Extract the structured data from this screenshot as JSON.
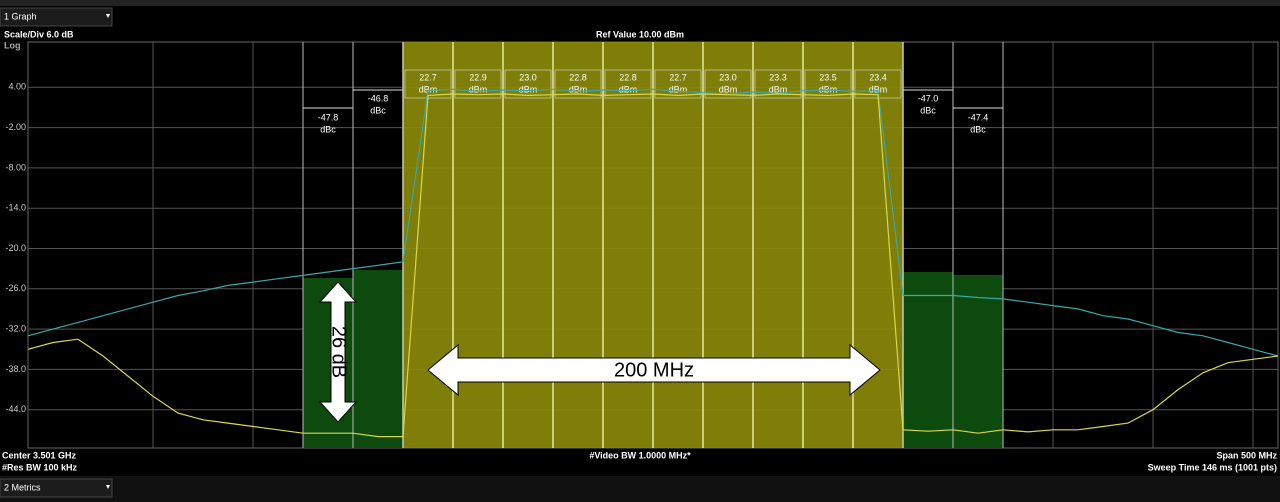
{
  "screen": {
    "top_menu": {
      "label": "1 Graph"
    },
    "header": {
      "scale": "Scale/Div 6.0 dB",
      "mode": "Log",
      "ref": "Ref Value 10.00 dBm"
    },
    "graph": {
      "ylim": [
        -50,
        10
      ],
      "yticks": [
        {
          "value": 4,
          "label": "4.00"
        },
        {
          "value": -2,
          "label": "-2.00"
        },
        {
          "value": -8,
          "label": "-8.00"
        },
        {
          "value": -14,
          "label": "-14.0"
        },
        {
          "value": -20,
          "label": "-20.0"
        },
        {
          "value": -26,
          "label": "-26.0"
        },
        {
          "value": -32,
          "label": "-32.0"
        },
        {
          "value": -38,
          "label": "-38.0"
        },
        {
          "value": -44,
          "label": "-44.0"
        }
      ],
      "channels": [
        {
          "power": "22.7",
          "unit": "dBm"
        },
        {
          "power": "22.9",
          "unit": "dBm"
        },
        {
          "power": "23.0",
          "unit": "dBm"
        },
        {
          "power": "22.8",
          "unit": "dBm"
        },
        {
          "power": "22.8",
          "unit": "dBm"
        },
        {
          "power": "22.7",
          "unit": "dBm"
        },
        {
          "power": "23.0",
          "unit": "dBm"
        },
        {
          "power": "23.3",
          "unit": "dBm"
        },
        {
          "power": "23.5",
          "unit": "dBm"
        },
        {
          "power": "23.4",
          "unit": "dBm"
        }
      ],
      "adjacent": [
        {
          "value": "-47.8",
          "unit": "dBc"
        },
        {
          "value": "-46.8",
          "unit": "dBc"
        },
        {
          "value": "-47.0",
          "unit": "dBc"
        },
        {
          "value": "-47.4",
          "unit": "dBc"
        }
      ],
      "traces": [
        {
          "color": "#d8d84a",
          "values": [
            -35,
            -34,
            -33.5,
            -36,
            -39,
            -42,
            -44.5,
            -45.5,
            -46,
            -46.5,
            -47,
            -47.5,
            -47.5,
            -47.5,
            -48,
            -48,
            2.8,
            3,
            2.9,
            3,
            2.8,
            2.9,
            3,
            2.8,
            2.9,
            3,
            2.8,
            3,
            2.9,
            2.8,
            3,
            2.9,
            2.8,
            3,
            2.9,
            -47,
            -47.2,
            -47,
            -47.5,
            -47,
            -47.3,
            -47,
            -47,
            -46.5,
            -46,
            -44,
            -41,
            -38.5,
            -37,
            -36.5,
            -36
          ]
        },
        {
          "color": "#3aa8a8",
          "values": [
            -33,
            -32,
            -31,
            -30,
            -29,
            -28,
            -27,
            -26.3,
            -25.5,
            -25,
            -24.5,
            -24,
            -23.5,
            -23,
            -22.5,
            -22,
            3.5,
            3.7,
            3.4,
            3.6,
            3.5,
            3.7,
            3.4,
            3.6,
            3.5,
            3.7,
            3.4,
            3.2,
            3,
            3.3,
            3.1,
            3.5,
            3.6,
            3.4,
            3.5,
            -27,
            -27,
            -27,
            -27.3,
            -27.5,
            -28,
            -28.5,
            -29,
            -30,
            -30.5,
            -31.5,
            -32.5,
            -33,
            -34,
            -35,
            -36
          ]
        }
      ],
      "annotations": {
        "vertical": "26 dB",
        "horizontal": "200 MHz"
      }
    },
    "footer": {
      "center": "Center 3.501 GHz",
      "rbw": "#Res BW 100 kHz",
      "vbw": "#Video BW 1.0000 MHz*",
      "span": "Span 500 MHz",
      "sweep": "Sweep Time 146 ms (1001 pts)"
    },
    "bottom_menu": {
      "label": "2 Metrics"
    }
  }
}
